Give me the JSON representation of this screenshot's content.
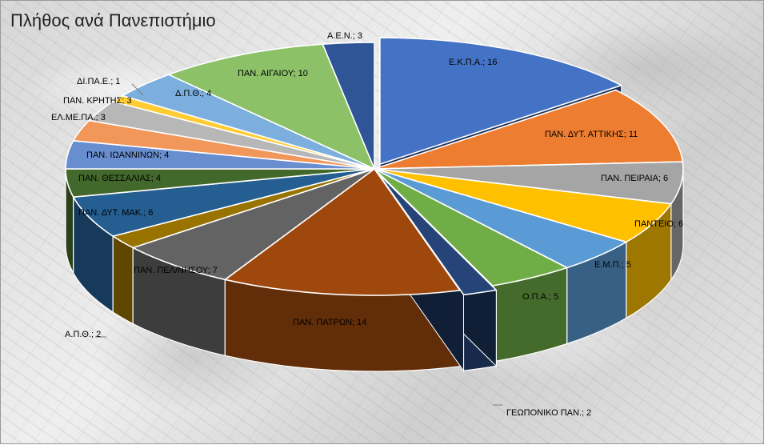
{
  "chart_data": {
    "type": "pie",
    "title": "Πλήθος ανά Πανεπιστήμιο",
    "slices": [
      {
        "label": "Ε.Κ.Π.Α.; 16",
        "value": 16,
        "color": "#4472c4"
      },
      {
        "label": "ΠΑΝ. ΔΥΤ. ΑΤΤΙΚΗΣ; 11",
        "value": 11,
        "color": "#ed7d31"
      },
      {
        "label": "ΠΑΝ. ΠΕΙΡΑΙΑ; 6",
        "value": 6,
        "color": "#a5a5a5"
      },
      {
        "label": "ΠΑΝΤΕΙΟ; 6",
        "value": 6,
        "color": "#ffc000"
      },
      {
        "label": "Ε.Μ.Π.; 5",
        "value": 5,
        "color": "#5b9bd5"
      },
      {
        "label": "Ο.Π.Α.; 5",
        "value": 5,
        "color": "#70ad47"
      },
      {
        "label": "ΓΕΩΠΟΝΙΚΟ ΠΑΝ.; 2",
        "value": 2,
        "color": "#264478"
      },
      {
        "label": "ΠΑΝ. ΠΑΤΡΩΝ; 14",
        "value": 14,
        "color": "#9e480e"
      },
      {
        "label": "ΠΑΝ. ΠΕΛ/ΝΗΣΟΥ; 7",
        "value": 7,
        "color": "#636363"
      },
      {
        "label": "Α.Π.Θ.; 2",
        "value": 2,
        "color": "#997300"
      },
      {
        "label": "ΠΑΝ. ΔΥΤ. ΜΑΚ.; 6",
        "value": 6,
        "color": "#255e91"
      },
      {
        "label": "ΠΑΝ. ΘΕΣΣΑΛΙΑΣ; 4",
        "value": 4,
        "color": "#43682b"
      },
      {
        "label": "ΠΑΝ. ΙΩΑΝΝΙΝΩΝ; 4",
        "value": 4,
        "color": "#698ed0"
      },
      {
        "label": "ΕΛ.ΜΕ.ΠΑ.; 3",
        "value": 3,
        "color": "#f1975a"
      },
      {
        "label": "ΠΑΝ. ΚΡΗΤΗΣ; 3",
        "value": 3,
        "color": "#b7b7b7"
      },
      {
        "label": "ΔΙ.ΠΑ.Ε.; 1",
        "value": 1,
        "color": "#ffcd33"
      },
      {
        "label": "Δ.Π.Θ.; 4",
        "value": 4,
        "color": "#7cafdd"
      },
      {
        "label": "ΠΑΝ. ΑΙΓΑΙΟΥ; 10",
        "value": 10,
        "color": "#8cc168"
      },
      {
        "label": "Α.Ε.Ν.; 3",
        "value": 3,
        "color": "#2f5597"
      }
    ],
    "legend": "none"
  }
}
